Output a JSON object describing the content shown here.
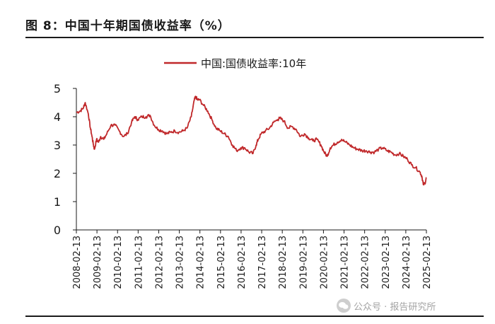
{
  "header": {
    "title": "图 8：中国十年期国债收益率（%）"
  },
  "watermark": {
    "text": "公众号 · 报告研究所"
  },
  "colors": {
    "series": "#c0282a",
    "axis": "#1a1a1a",
    "text": "#1a1a1a"
  },
  "chart_data": {
    "type": "line",
    "title": "图 8：中国十年期国债收益率（%）",
    "xlabel": "",
    "ylabel": "",
    "ylim": [
      0,
      5
    ],
    "yticks": [
      0,
      1,
      2,
      3,
      4,
      5
    ],
    "xlim": [
      "2008-02-13",
      "2025-02-13"
    ],
    "xticks": [
      "2008-02-13",
      "2009-02-13",
      "2010-02-13",
      "2011-02-13",
      "2012-02-13",
      "2013-02-13",
      "2014-02-13",
      "2015-02-13",
      "2016-02-13",
      "2017-02-13",
      "2018-02-13",
      "2019-02-13",
      "2020-02-13",
      "2021-02-13",
      "2022-02-13",
      "2023-02-13",
      "2024-02-13",
      "2025-02-13"
    ],
    "legend": {
      "placement": "top-center"
    },
    "series": [
      {
        "name": "中国:国债收益率:10年",
        "x": [
          2008.12,
          2008.3,
          2008.45,
          2008.55,
          2008.7,
          2008.8,
          2008.88,
          2008.95,
          2009.0,
          2009.1,
          2009.2,
          2009.3,
          2009.45,
          2009.6,
          2009.8,
          2010.0,
          2010.2,
          2010.4,
          2010.6,
          2010.8,
          2010.95,
          2011.1,
          2011.3,
          2011.5,
          2011.7,
          2011.9,
          2012.1,
          2012.3,
          2012.5,
          2012.7,
          2012.9,
          2013.1,
          2013.3,
          2013.5,
          2013.7,
          2013.85,
          2013.92,
          2014.0,
          2014.1,
          2014.3,
          2014.5,
          2014.7,
          2014.9,
          2015.1,
          2015.3,
          2015.5,
          2015.7,
          2015.9,
          2016.1,
          2016.3,
          2016.5,
          2016.7,
          2016.85,
          2016.95,
          2017.1,
          2017.3,
          2017.5,
          2017.7,
          2017.9,
          2018.0,
          2018.2,
          2018.4,
          2018.6,
          2018.8,
          2019.0,
          2019.2,
          2019.4,
          2019.6,
          2019.8,
          2020.0,
          2020.15,
          2020.3,
          2020.45,
          2020.6,
          2020.8,
          2021.0,
          2021.2,
          2021.4,
          2021.6,
          2021.8,
          2022.0,
          2022.2,
          2022.4,
          2022.6,
          2022.8,
          2023.0,
          2023.2,
          2023.4,
          2023.6,
          2023.8,
          2024.0,
          2024.2,
          2024.4,
          2024.6,
          2024.8,
          2024.9,
          2024.97,
          2025.05,
          2025.12
        ],
        "values": [
          4.15,
          4.2,
          4.3,
          4.5,
          4.1,
          3.6,
          3.3,
          3.0,
          2.85,
          3.2,
          3.1,
          3.3,
          3.2,
          3.4,
          3.7,
          3.7,
          3.5,
          3.3,
          3.4,
          3.8,
          4.0,
          3.9,
          4.0,
          4.0,
          4.05,
          3.7,
          3.55,
          3.5,
          3.4,
          3.45,
          3.5,
          3.45,
          3.5,
          3.6,
          4.0,
          4.6,
          4.7,
          4.6,
          4.6,
          4.4,
          4.2,
          3.9,
          3.6,
          3.5,
          3.4,
          3.3,
          3.0,
          2.8,
          2.9,
          2.9,
          2.75,
          2.7,
          3.0,
          3.2,
          3.4,
          3.5,
          3.6,
          3.8,
          3.9,
          3.95,
          3.85,
          3.6,
          3.65,
          3.55,
          3.3,
          3.4,
          3.25,
          3.15,
          3.2,
          3.0,
          2.75,
          2.6,
          2.9,
          3.0,
          3.1,
          3.2,
          3.1,
          3.0,
          2.9,
          2.85,
          2.8,
          2.8,
          2.75,
          2.75,
          2.85,
          2.9,
          2.8,
          2.75,
          2.65,
          2.7,
          2.6,
          2.5,
          2.3,
          2.2,
          2.05,
          1.9,
          1.6,
          1.65,
          1.85
        ]
      }
    ]
  }
}
